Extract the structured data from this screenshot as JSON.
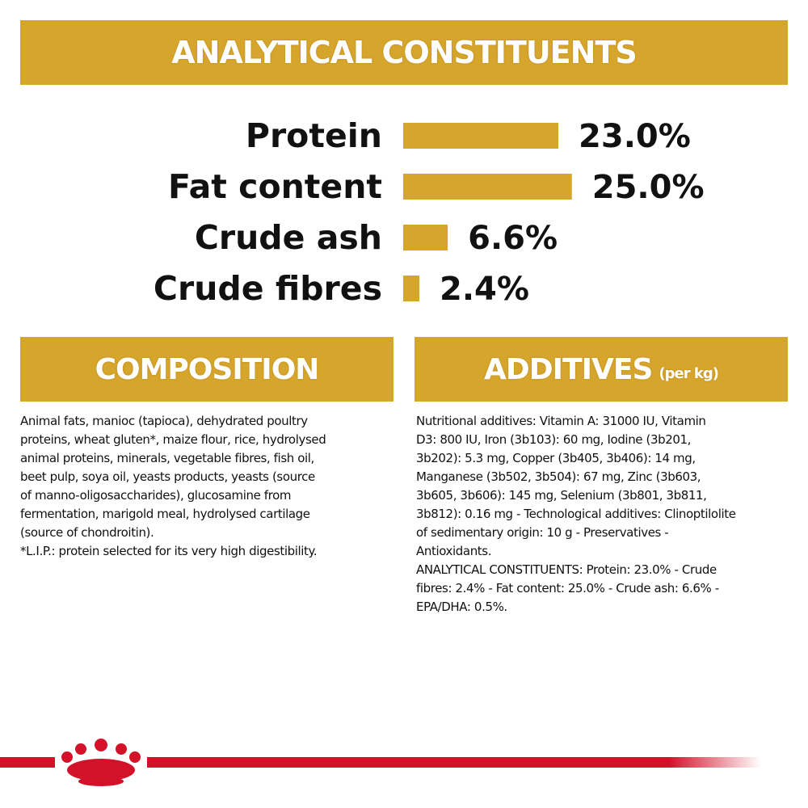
{
  "chart_data": {
    "type": "bar",
    "orientation": "horizontal",
    "title": "ANALYTICAL CONSTITUENTS",
    "categories": [
      "Protein",
      "Fat content",
      "Crude ash",
      "Crude fibres"
    ],
    "values": [
      23.0,
      25.0,
      6.6,
      2.4
    ],
    "value_labels": [
      "23.0%",
      "25.0%",
      "6.6%",
      "2.4%"
    ],
    "color": "#d6a52c"
  },
  "composition": {
    "title": "COMPOSITION",
    "lines": [
      "Animal fats, manioc (tapioca), dehydrated poultry",
      "proteins, wheat gluten*, maize flour, rice, hydrolysed",
      "animal proteins, minerals, vegetable fibres, fish oil,",
      "beet pulp, soya oil, yeasts products, yeasts (source",
      "of manno-oligosaccharides), glucosamine from",
      "fermentation, marigold meal, hydrolysed cartilage",
      "(source of chondroitin).",
      "*L.I.P.: protein selected for its very high digestibility."
    ]
  },
  "additives": {
    "title": "ADDITIVES",
    "unit": "(per kg)",
    "lines": [
      "Nutritional additives: Vitamin A: 31000 IU, Vitamin",
      "D3: 800 IU, Iron (3b103): 60 mg, Iodine (3b201,",
      "3b202): 5.3 mg, Copper (3b405, 3b406): 14 mg,",
      "Manganese (3b502, 3b504): 67 mg, Zinc (3b603,",
      "3b605, 3b606): 145 mg, Selenium (3b801, 3b811,",
      "3b812): 0.16 mg - Technological additives: Clinoptilolite",
      "of sedimentary origin: 10 g - Preservatives -",
      "Antioxidants.",
      "ANALYTICAL CONSTITUENTS: Protein: 23.0% - Crude",
      "fibres: 2.4% - Fat content: 25.0% - Crude ash: 6.6% -",
      "EPA/DHA: 0.5%."
    ]
  }
}
